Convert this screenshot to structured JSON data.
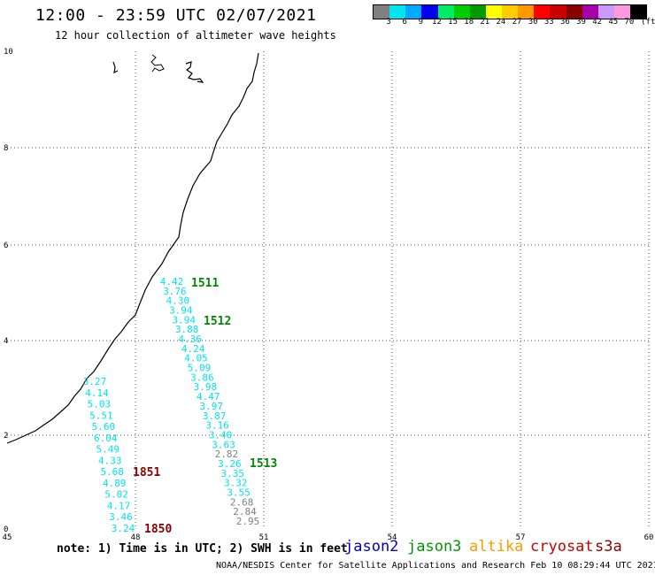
{
  "header": {
    "title": "12:00 - 23:59 UTC 02/07/2021",
    "subtitle": "12 hour collection of altimeter wave heights"
  },
  "color_scale": {
    "labels": [
      "3",
      "6",
      "9",
      "12",
      "15",
      "18",
      "21",
      "24",
      "27",
      "30",
      "33",
      "36",
      "39",
      "42",
      "45",
      "70",
      "(ft)"
    ],
    "colors": [
      "#808080",
      "#00e5ee",
      "#00aaff",
      "#0000ee",
      "#00ee66",
      "#00cc00",
      "#009900",
      "#ffff00",
      "#ffcc00",
      "#ff9900",
      "#ff0000",
      "#cc0000",
      "#880000",
      "#aa00aa",
      "#cc99ff",
      "#ff99dd",
      "#000000"
    ]
  },
  "map": {
    "x_ticks": [
      "45",
      "48",
      "51",
      "54",
      "57",
      "60"
    ],
    "y_ticks": [
      "10",
      "8",
      "6",
      "4",
      "2",
      "0"
    ],
    "passes": [
      {
        "time": "1511",
        "color": "#008800"
      },
      {
        "time": "1512",
        "color": "#008800"
      },
      {
        "time": "1513",
        "color": "#008800"
      },
      {
        "time": "1851",
        "color": "#880000"
      },
      {
        "time": "1850",
        "color": "#880000"
      }
    ],
    "tracks": [
      {
        "values": [
          "4.42",
          "3.76",
          "4.30",
          "3.94",
          "3.94",
          "3.88",
          "4.36",
          "4.24",
          "4.05",
          "5.09",
          "3.86",
          "3.98",
          "4.47",
          "3.97",
          "3.87",
          "3.16",
          "3.40",
          "3.63",
          "2.82",
          "3.26",
          "3.35",
          "3.32",
          "3.55",
          "2.68",
          "2.84",
          "2.95"
        ],
        "colors": [
          "#00e5ee",
          "#00e5ee",
          "#00e5ee",
          "#00e5ee",
          "#00e5ee",
          "#00e5ee",
          "#00e5ee",
          "#00e5ee",
          "#00e5ee",
          "#00e5ee",
          "#00e5ee",
          "#00e5ee",
          "#00e5ee",
          "#00e5ee",
          "#00e5ee",
          "#00e5ee",
          "#00e5ee",
          "#00e5ee",
          "#808080",
          "#00e5ee",
          "#00e5ee",
          "#00e5ee",
          "#00e5ee",
          "#808080",
          "#808080",
          "#808080"
        ]
      },
      {
        "values": [
          "3.27",
          "4.14",
          "5.03",
          "5.51",
          "5.60",
          "6.04",
          "5.49",
          "4.33",
          "5.68",
          "4.89",
          "5.02",
          "4.17",
          "3.46",
          "3.24"
        ],
        "colors": [
          "#00e5ee",
          "#00e5ee",
          "#00e5ee",
          "#00e5ee",
          "#00e5ee",
          "#00e5ee",
          "#00e5ee",
          "#00e5ee",
          "#00e5ee",
          "#00e5ee",
          "#00e5ee",
          "#00e5ee",
          "#00e5ee",
          "#00e5ee"
        ]
      }
    ]
  },
  "footer": {
    "note": "note: 1) Time is in UTC; 2) SWH is in feet",
    "satellites": [
      {
        "name": "jason2",
        "color": "#0000cc"
      },
      {
        "name": "jason3",
        "color": "#009900"
      },
      {
        "name": "altika",
        "color": "#ff9900"
      },
      {
        "name": "cryosat",
        "color": "#cc0000"
      },
      {
        "name": "s3a",
        "color": "#880000"
      }
    ],
    "credit": "NOAA/NESDIS Center for Satellite Applications and Research    Feb 10 08:29:44 UTC 2021"
  }
}
